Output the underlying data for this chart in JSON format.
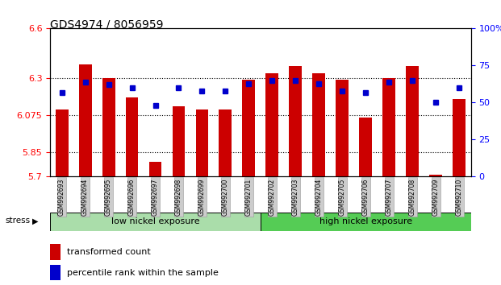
{
  "title": "GDS4974 / 8056959",
  "samples": [
    "GSM992693",
    "GSM992694",
    "GSM992695",
    "GSM992696",
    "GSM992697",
    "GSM992698",
    "GSM992699",
    "GSM992700",
    "GSM992701",
    "GSM992702",
    "GSM992703",
    "GSM992704",
    "GSM992705",
    "GSM992706",
    "GSM992707",
    "GSM992708",
    "GSM992709",
    "GSM992710"
  ],
  "red_values": [
    6.11,
    6.38,
    6.3,
    6.18,
    5.79,
    6.13,
    6.11,
    6.11,
    6.29,
    6.33,
    6.37,
    6.33,
    6.29,
    6.06,
    6.3,
    6.37,
    5.71,
    6.17
  ],
  "blue_pct": [
    57,
    64,
    62,
    60,
    48,
    60,
    58,
    58,
    63,
    65,
    65,
    63,
    58,
    57,
    64,
    65,
    50,
    60
  ],
  "ylim_left": [
    5.7,
    6.6
  ],
  "ylim_right": [
    0,
    100
  ],
  "yticks_left": [
    5.7,
    5.85,
    6.075,
    6.3,
    6.6
  ],
  "yticks_right": [
    0,
    25,
    50,
    75,
    100
  ],
  "ytick_labels_left": [
    "5.7",
    "5.85",
    "6.075",
    "6.3",
    "6.6"
  ],
  "ytick_labels_right": [
    "0",
    "25",
    "50",
    "75",
    "100%"
  ],
  "bar_color": "#cc0000",
  "dot_color": "#0000cc",
  "bar_bottom": 5.7,
  "group1_label": "low nickel exposure",
  "group2_label": "high nickel exposure",
  "group1_count": 9,
  "group2_count": 9,
  "stress_label": "stress",
  "legend1": "transformed count",
  "legend2": "percentile rank within the sample",
  "group1_color": "#aaddaa",
  "group2_color": "#55cc55",
  "tick_label_bg": "#cccccc"
}
